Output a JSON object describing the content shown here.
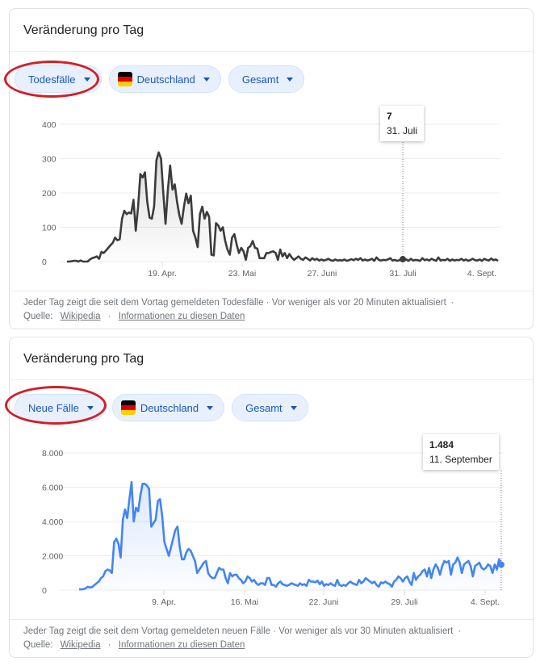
{
  "cards": [
    {
      "title": "Veränderung pro Tag",
      "chips": [
        {
          "label": "Todesfälle",
          "has_flag": false,
          "highlighted": true
        },
        {
          "label": "Deutschland",
          "has_flag": true,
          "flag_icon": "germany-flag-icon"
        },
        {
          "label": "Gesamt",
          "has_flag": false
        }
      ],
      "tooltip": {
        "value": "7",
        "date": "31. Juli"
      },
      "footer": {
        "description": "Jeder Tag zeigt die seit dem Vortag gemeldeten Todesfälle · Vor weniger als vor 20 Minuten aktualisiert",
        "source_label": "Quelle:",
        "source_link": "Wikipedia",
        "info_link": "Informationen zu diesen Daten"
      }
    },
    {
      "title": "Veränderung pro Tag",
      "chips": [
        {
          "label": "Neue Fälle",
          "has_flag": false,
          "highlighted": true
        },
        {
          "label": "Deutschland",
          "has_flag": true,
          "flag_icon": "germany-flag-icon"
        },
        {
          "label": "Gesamt",
          "has_flag": false
        }
      ],
      "tooltip": {
        "value": "1.484",
        "date": "11. September"
      },
      "footer": {
        "description": "Jeder Tag zeigt die seit dem Vortag gemeldeten neuen Fälle · Vor weniger als vor 30 Minuten aktualisiert",
        "source_label": "Quelle:",
        "source_link": "Wikipedia",
        "info_link": "Informationen zu diesen Daten"
      }
    }
  ],
  "colors": {
    "deaths_line": "#3c3c3c",
    "cases_line": "#4285f4",
    "chip_bg": "#e8f0fe",
    "chip_text": "#1a56b8",
    "highlight_circle": "#d21f26",
    "flag": [
      "#000000",
      "#dd0000",
      "#ffce00"
    ]
  },
  "chart_data": [
    {
      "type": "area",
      "title": "Veränderung pro Tag – Todesfälle (Deutschland, Gesamt)",
      "xlabel": "",
      "ylabel": "Todesfälle",
      "ylim": [
        0,
        400
      ],
      "yticks": [
        "0",
        "100",
        "200",
        "300",
        "400"
      ],
      "xticks": [
        "19. Apr.",
        "23. Mai",
        "27. Juni",
        "31. Juli",
        "4. Sept."
      ],
      "grid": true,
      "legend": "none",
      "highlight": {
        "x_label": "31. Juli",
        "value": 7
      },
      "series": [
        {
          "name": "Todesfälle",
          "values": [
            0,
            0,
            1,
            2,
            2,
            0,
            3,
            0,
            0,
            0,
            6,
            10,
            12,
            15,
            8,
            28,
            25,
            32,
            40,
            48,
            55,
            70,
            62,
            65,
            125,
            148,
            138,
            143,
            140,
            180,
            90,
            160,
            255,
            245,
            260,
            175,
            128,
            125,
            160,
            295,
            318,
            300,
            200,
            110,
            210,
            280,
            210,
            225,
            175,
            135,
            110,
            160,
            198,
            170,
            192,
            90,
            70,
            42,
            138,
            160,
            125,
            145,
            130,
            20,
            18,
            112,
            105,
            90,
            100,
            60,
            35,
            20,
            70,
            80,
            50,
            25,
            40,
            30,
            5,
            40,
            45,
            60,
            40,
            38,
            10,
            10,
            10,
            25,
            25,
            28,
            30,
            25,
            5,
            35,
            15,
            25,
            10,
            22,
            12,
            5,
            10,
            15,
            8,
            5,
            12,
            8,
            3,
            10,
            5,
            8,
            3,
            6,
            3,
            5,
            8,
            4,
            2,
            6,
            3,
            4,
            3,
            6,
            2,
            4,
            7,
            4,
            8,
            5,
            10,
            3,
            6,
            3,
            5,
            8,
            2,
            12,
            5,
            3,
            5,
            4,
            6,
            10,
            3,
            5,
            2,
            4,
            8,
            3,
            6,
            2,
            8,
            3,
            5,
            4,
            2,
            10,
            4,
            6,
            3,
            8,
            5,
            2,
            12,
            3,
            5,
            4,
            8,
            2,
            6,
            3,
            5,
            4,
            8,
            3,
            6,
            2,
            5,
            8,
            4,
            3,
            6,
            2,
            8,
            5,
            3,
            9,
            4,
            6,
            2
          ]
        }
      ]
    },
    {
      "type": "area",
      "title": "Veränderung pro Tag – Neue Fälle (Deutschland, Gesamt)",
      "xlabel": "",
      "ylabel": "Neue Fälle",
      "ylim": [
        0,
        8000
      ],
      "yticks": [
        "0",
        "2.000",
        "4.000",
        "6.000",
        "8.000"
      ],
      "xticks": [
        "9. Apr.",
        "16. Mai",
        "22. Juni",
        "29. Juli",
        "4. Sept."
      ],
      "grid": true,
      "legend": "none",
      "highlight": {
        "x_label": "11. September",
        "value": 1484
      },
      "series": [
        {
          "name": "Neue Fälle",
          "values": [
            50,
            40,
            60,
            100,
            200,
            150,
            180,
            300,
            400,
            500,
            700,
            800,
            1100,
            1200,
            1150,
            1000,
            2800,
            3000,
            2700,
            1900,
            4100,
            4700,
            4200,
            5300,
            6300,
            4000,
            4800,
            4600,
            5500,
            6200,
            6200,
            6100,
            5900,
            3700,
            3900,
            4100,
            5200,
            5300,
            4300,
            2800,
            2400,
            2000,
            2500,
            3000,
            3500,
            3700,
            2500,
            1800,
            1800,
            2200,
            2400,
            2300,
            2000,
            1700,
            1000,
            1200,
            1400,
            1600,
            1700,
            1000,
            800,
            700,
            700,
            1000,
            1300,
            1200,
            1200,
            700,
            400,
            1000,
            800,
            900,
            900,
            700,
            600,
            400,
            500,
            800,
            700,
            500,
            600,
            400,
            300,
            400,
            400,
            300,
            700,
            700,
            300,
            300,
            200,
            400,
            500,
            350,
            300,
            250,
            300,
            400,
            350,
            300,
            250,
            400,
            300,
            350,
            250,
            600,
            500,
            500,
            450,
            550,
            350,
            500,
            250,
            350,
            300,
            400,
            300,
            250,
            600,
            300,
            250,
            300,
            250,
            400,
            500,
            400,
            350,
            300,
            600,
            400,
            500,
            700,
            600,
            500,
            400,
            500,
            300,
            200,
            450,
            400,
            500,
            400,
            350,
            200,
            500,
            600,
            800,
            700,
            500,
            700,
            800,
            500,
            300,
            1000,
            600,
            800,
            900,
            1100,
            1200,
            800,
            1300,
            700,
            1200,
            1500,
            1300,
            900,
            1400,
            1700,
            1600,
            1700,
            900,
            1500,
            1600,
            1900,
            1600,
            1000,
            1500,
            1600,
            1700,
            1400,
            800,
            1400,
            1500,
            1600,
            1300,
            1200,
            1300,
            1500,
            1400,
            1000,
            1500,
            1200,
            1800,
            1484
          ]
        }
      ]
    }
  ]
}
